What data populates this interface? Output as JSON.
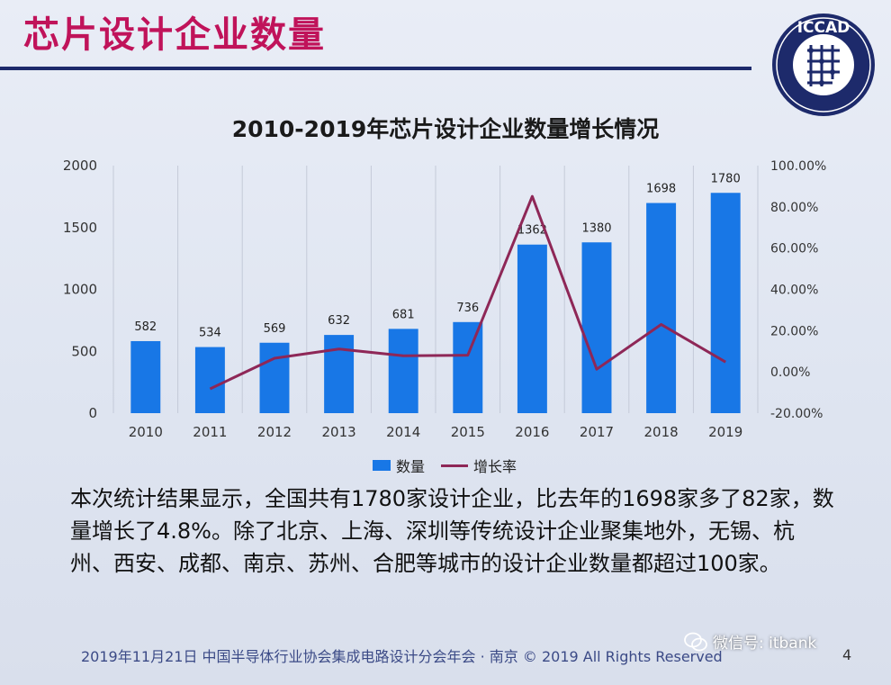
{
  "slide": {
    "title": "芯片设计企业数量",
    "body": "本次统计结果显示，全国共有1780家设计企业，比去年的1698家多了82家，数量增长了4.8%。除了北京、上海、深圳等传统设计企业聚集地外，无锡、杭州、西安、成都、南京、苏州、合肥等城市的设计企业数量都超过100家。",
    "footer": "2019年11月21日  中国半导体行业协会集成电路设计分会年会 · 南京  © 2019 All Rights Reserved",
    "page_number": "4",
    "watermark": "微信号: itbank"
  },
  "logo": {
    "text": "ICCAD",
    "ring_text": "中国半导体行业协会集成电路设计分会"
  },
  "colors": {
    "title": "#c0135a",
    "bar": "#1877e6",
    "line": "#8e2757",
    "rule": "#1d2a6b"
  },
  "chart_data": {
    "type": "bar",
    "title": "2010-2019年芯片设计企业数量增长情况",
    "categories": [
      "2010",
      "2011",
      "2012",
      "2013",
      "2014",
      "2015",
      "2016",
      "2017",
      "2018",
      "2019"
    ],
    "series": [
      {
        "name": "数量",
        "type": "bar",
        "axis": "left",
        "values": [
          582,
          534,
          569,
          632,
          681,
          736,
          1362,
          1380,
          1698,
          1780
        ]
      },
      {
        "name": "增长率",
        "type": "line",
        "axis": "right",
        "values": [
          null,
          -8.2,
          6.6,
          11.1,
          7.8,
          8.1,
          85.1,
          1.3,
          23.0,
          4.8
        ]
      }
    ],
    "y_left": {
      "lim": [
        0,
        2000
      ],
      "ticks": [
        0,
        500,
        1000,
        1500,
        2000
      ]
    },
    "y_right": {
      "lim": [
        -20,
        100
      ],
      "ticks": [
        -20,
        0,
        20,
        40,
        60,
        80,
        100
      ],
      "tick_labels": [
        "-20.00%",
        "0.00%",
        "20.00%",
        "40.00%",
        "60.00%",
        "80.00%",
        "100.00%"
      ]
    },
    "data_labels": [
      "582",
      "534",
      "569",
      "632",
      "681",
      "736",
      "1362",
      "1380",
      "1698",
      "1780"
    ],
    "grid": "vertical",
    "legend": "bottom"
  }
}
